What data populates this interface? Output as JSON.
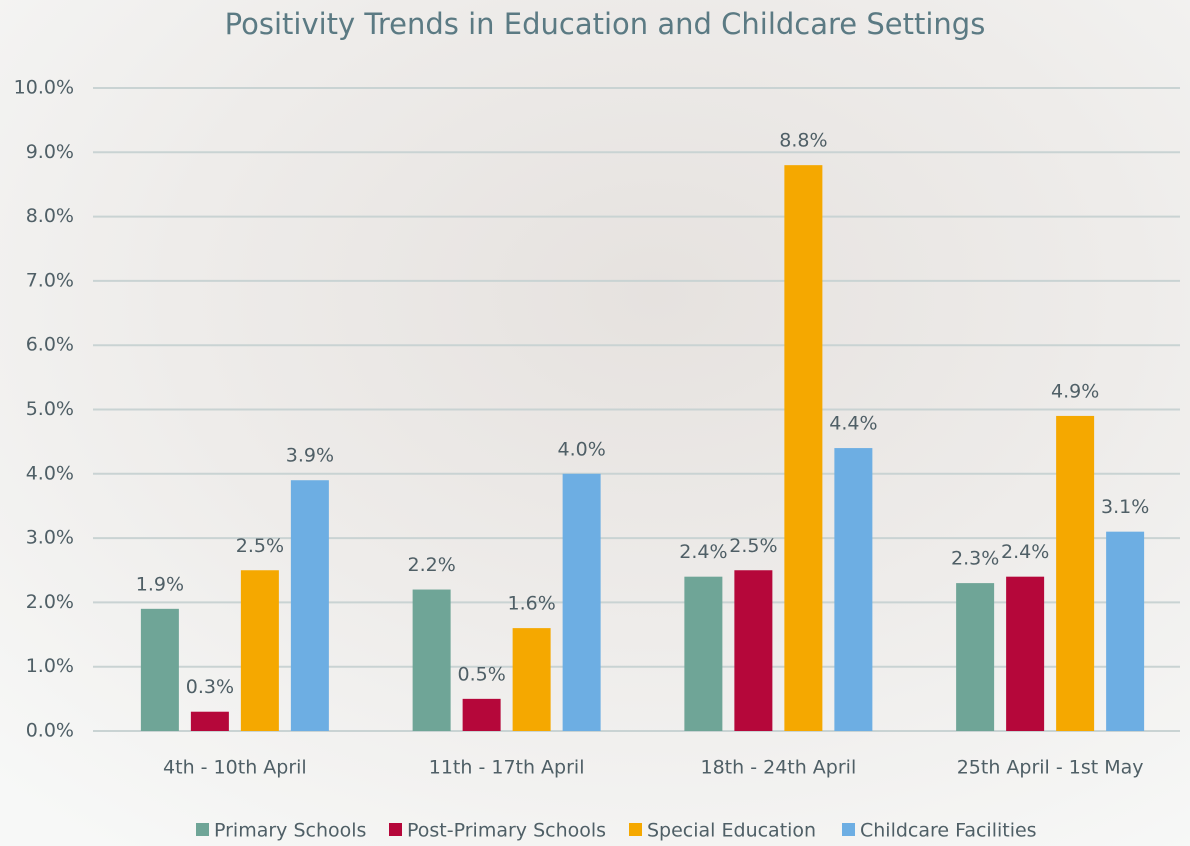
{
  "chart_data": {
    "type": "bar",
    "title": "Positivity Trends in Education and Childcare Settings",
    "categories": [
      "4th - 10th April",
      "11th - 17th April",
      "18th - 24th April",
      "25th April - 1st May"
    ],
    "series": [
      {
        "name": "Primary Schools",
        "color": "#6fa597",
        "values": [
          1.9,
          2.2,
          2.4,
          2.3
        ],
        "value_labels": [
          "1.9%",
          "2.2%",
          "2.4%",
          "2.3%"
        ]
      },
      {
        "name": "Post-Primary Schools",
        "color": "#b5073a",
        "values": [
          0.3,
          0.5,
          2.5,
          2.4
        ],
        "value_labels": [
          "0.3%",
          "0.5%",
          "2.5%",
          "2.4%"
        ]
      },
      {
        "name": "Special Education",
        "color": "#f5a800",
        "values": [
          2.5,
          1.6,
          8.8,
          4.9
        ],
        "value_labels": [
          "2.5%",
          "1.6%",
          "8.8%",
          "4.9%"
        ]
      },
      {
        "name": "Childcare Facilities",
        "color": "#6daee3",
        "values": [
          3.9,
          4.0,
          4.4,
          3.1
        ],
        "value_labels": [
          "3.9%",
          "4.0%",
          "4.4%",
          "3.1%"
        ]
      }
    ],
    "ylim": [
      0,
      10
    ],
    "yticks": [
      {
        "value": 0,
        "label": "0.0%"
      },
      {
        "value": 1,
        "label": "1.0%"
      },
      {
        "value": 2,
        "label": "2.0%"
      },
      {
        "value": 3,
        "label": "3.0%"
      },
      {
        "value": 4,
        "label": "4.0%"
      },
      {
        "value": 5,
        "label": "5.0%"
      },
      {
        "value": 6,
        "label": "6.0%"
      },
      {
        "value": 7,
        "label": "7.0%"
      },
      {
        "value": 8,
        "label": "8.0%"
      },
      {
        "value": 9,
        "label": "9.0%"
      },
      {
        "value": 10,
        "label": "10.0%"
      }
    ],
    "grid": true,
    "legend": "bottom"
  }
}
